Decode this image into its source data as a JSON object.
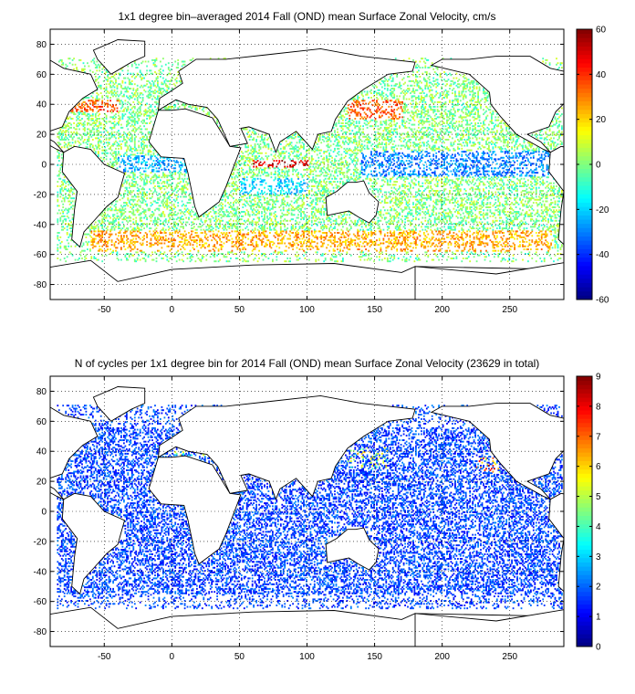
{
  "chart_data": [
    {
      "type": "heatmap",
      "title": "1x1 degree bin–averaged 2014 Fall (OND) mean Surface Zonal Velocity, cm/s",
      "xlabel": "",
      "ylabel": "",
      "xlim": [
        -90,
        290
      ],
      "ylim": [
        -90,
        90
      ],
      "xticks": [
        -50,
        0,
        50,
        100,
        150,
        200,
        250
      ],
      "yticks": [
        -80,
        -60,
        -40,
        -20,
        0,
        20,
        40,
        60,
        80
      ],
      "grid": true,
      "colorbar": {
        "range": [
          -60,
          60
        ],
        "ticks": [
          -60,
          -40,
          -20,
          0,
          20,
          40,
          60
        ],
        "colormap": "jet"
      },
      "description_values": "Zonal velocity (cm/s) in 1x1 degree bins; sparse scatter over oceans. Strong eastward (red, ~40-60) along equatorial Indian Ocean near 80E, Kuroshio ~35N 140-160E, Gulf Stream ~40N -60 to -40, Antarctic Circumpolar Current ~-50 to -55; westward (blue, ~-20 to -40) along equatorial Pacific and Atlantic.",
      "regions": [
        {
          "x": [
            60,
            100
          ],
          "y": [
            -2,
            2
          ],
          "value": 50
        },
        {
          "x": [
            130,
            170
          ],
          "y": [
            30,
            42
          ],
          "value": 35
        },
        {
          "x": [
            -75,
            -40
          ],
          "y": [
            35,
            42
          ],
          "value": 35
        },
        {
          "x": [
            -60,
            280
          ],
          "y": [
            -58,
            -45
          ],
          "value": 25
        },
        {
          "x": [
            140,
            280
          ],
          "y": [
            -8,
            8
          ],
          "value": -30
        },
        {
          "x": [
            -40,
            10
          ],
          "y": [
            -5,
            5
          ],
          "value": -25
        },
        {
          "x": [
            50,
            100
          ],
          "y": [
            -20,
            -10
          ],
          "value": -20
        }
      ]
    },
    {
      "type": "heatmap",
      "title": "N of cycles per 1x1 degree bin for 2014 Fall (OND) mean Surface Zonal Velocity (23629 in total)",
      "xlabel": "",
      "ylabel": "",
      "xlim": [
        -90,
        290
      ],
      "ylim": [
        -90,
        90
      ],
      "xticks": [
        -50,
        0,
        50,
        100,
        150,
        200,
        250
      ],
      "yticks": [
        -80,
        -60,
        -40,
        -20,
        0,
        20,
        40,
        60,
        80
      ],
      "grid": true,
      "colorbar": {
        "range": [
          0,
          9
        ],
        "ticks": [
          0,
          1,
          2,
          3,
          4,
          5,
          6,
          7,
          8,
          9
        ],
        "colormap": "jet"
      },
      "description_values": "Number of cycles per bin, mostly 1-2 (blue) across all oceans; higher counts (5-9) in Kuroshio region ~35N 140E, NW Atlantic, Mediterranean, near 30N 240E.",
      "regions": [
        {
          "x": [
            130,
            160
          ],
          "y": [
            28,
            42
          ],
          "value": 6
        },
        {
          "x": [
            225,
            245
          ],
          "y": [
            25,
            35
          ],
          "value": 8
        },
        {
          "x": [
            0,
            30
          ],
          "y": [
            35,
            42
          ],
          "value": 5
        },
        {
          "x": [
            -80,
            280
          ],
          "y": [
            -60,
            60
          ],
          "value": 1.5
        }
      ]
    }
  ]
}
